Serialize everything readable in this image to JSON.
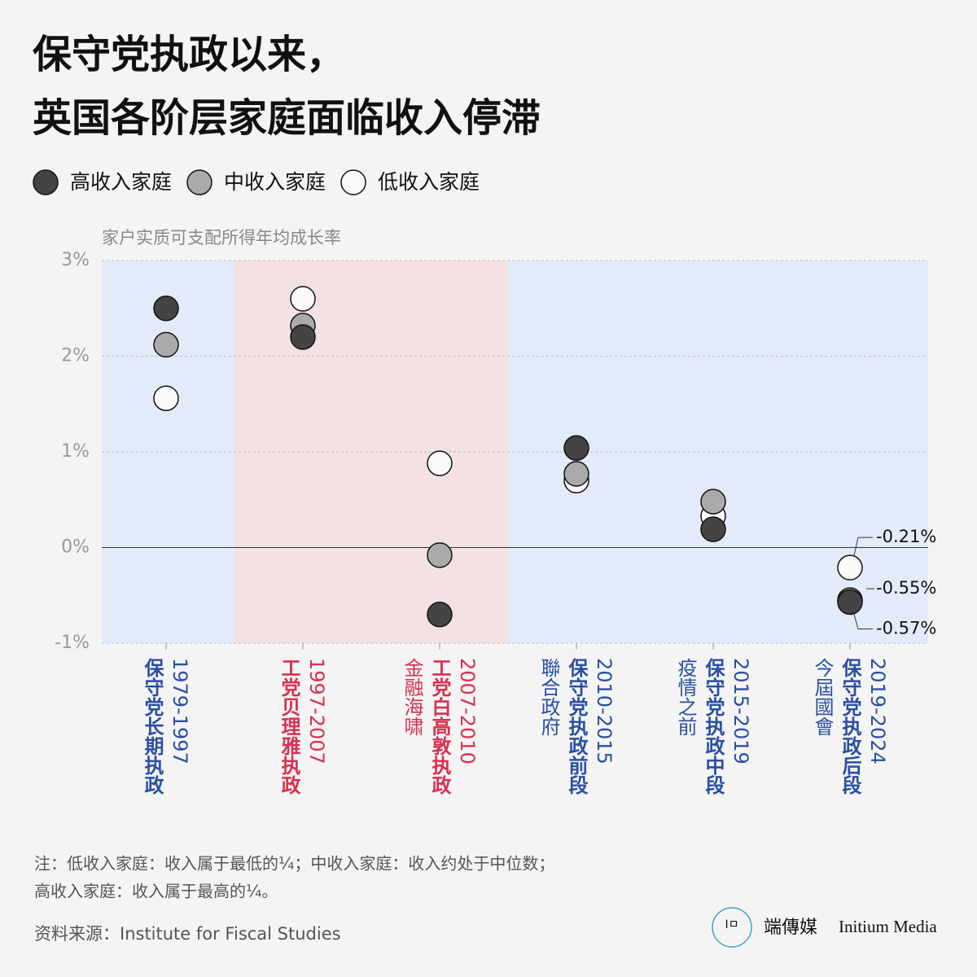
{
  "chart_data": {
    "type": "dot",
    "title": [
      "保守党执政以来，",
      "英国各阶层家庭面临收入停滞"
    ],
    "y_label": "家户实质可支配所得年均成长率",
    "categories": [
      "1979-1997",
      "1997-2007",
      "2007-2010",
      "2010-2015",
      "2015-2019",
      "2019-2024"
    ],
    "category_labels": [
      "保守党长期执政",
      "工党贝理雅执政",
      "工党白高敦执政",
      "保守党执政前段",
      "保守党执政中段",
      "保守党执政后段"
    ],
    "category_notes": [
      null,
      null,
      "金融海啸",
      "聯合政府",
      "疫情之前",
      "今屆國會"
    ],
    "label_colors": [
      "#2b4fa3",
      "#d8304f",
      "#d8304f",
      "#2b4fa3",
      "#2b4fa3",
      "#2b4fa3"
    ],
    "band_colors": [
      "#e3ebfb",
      "#f3e1e3",
      "#f3e1e3",
      "#e3ebfb",
      "#e3ebfb",
      "#e3ebfb"
    ],
    "series": [
      {
        "name": "高收入家庭",
        "color": "#444444",
        "values": [
          2.5,
          2.2,
          -0.7,
          1.04,
          0.19,
          -0.57
        ],
        "value_labels": [
          null,
          null,
          null,
          null,
          null,
          "-0.57%"
        ]
      },
      {
        "name": "中收入家庭",
        "color": "#aaaaaa",
        "values": [
          2.12,
          2.32,
          -0.08,
          0.77,
          0.48,
          -0.55
        ],
        "value_labels": [
          null,
          null,
          null,
          null,
          null,
          "-0.55%"
        ]
      },
      {
        "name": "低收入家庭",
        "color": "#fafafa",
        "values": [
          1.56,
          2.6,
          0.88,
          0.7,
          0.33,
          -0.21
        ],
        "value_labels": [
          null,
          null,
          null,
          null,
          null,
          "-0.21%"
        ]
      }
    ],
    "ylim": [
      -1,
      3
    ],
    "yticks": [
      {
        "value": -1,
        "label": "-1%"
      },
      {
        "value": 0,
        "label": "0%"
      },
      {
        "value": 1,
        "label": "1%"
      },
      {
        "value": 2,
        "label": "2%"
      },
      {
        "value": 3,
        "label": "3%"
      }
    ],
    "grid": true,
    "notes": [
      "注：低收入家庭：收入属于最低的¼；中收入家庭：收入约处于中位数；",
      "高收入家庭：收入属于最高的¼。"
    ],
    "source": "资料来源：Institute for Fiscal Studies",
    "brand": "端傳媒",
    "brand_en": "Initium Media"
  }
}
